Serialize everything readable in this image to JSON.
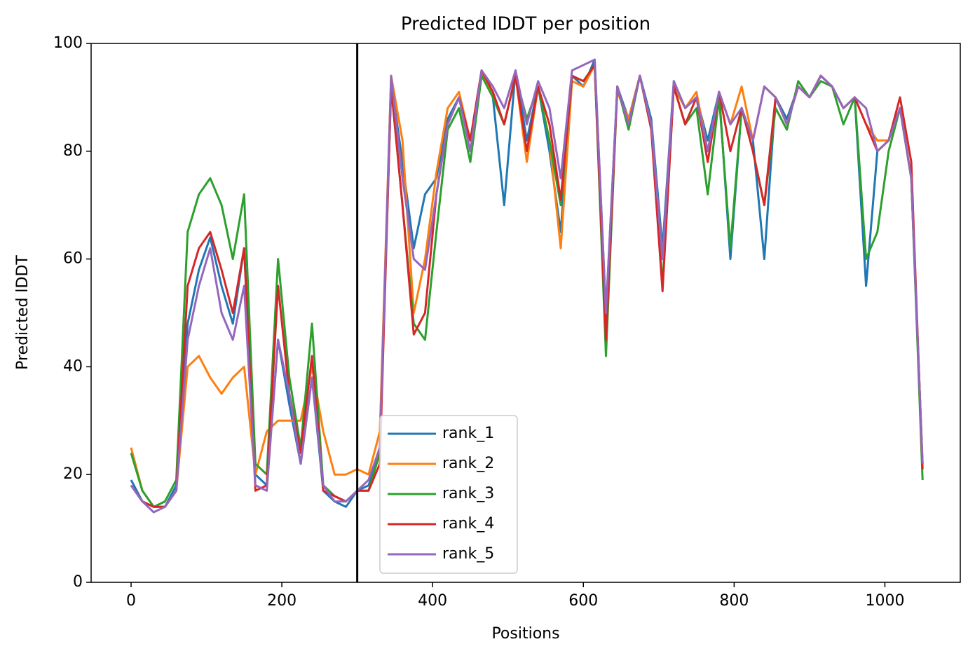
{
  "chart_data": {
    "type": "line",
    "title": "Predicted lDDT per position",
    "xlabel": "Positions",
    "ylabel": "Predicted lDDT",
    "x": [
      0,
      15,
      30,
      45,
      60,
      75,
      90,
      105,
      120,
      135,
      150,
      165,
      180,
      195,
      210,
      225,
      240,
      255,
      270,
      285,
      300,
      315,
      330,
      345,
      360,
      375,
      390,
      405,
      420,
      435,
      450,
      465,
      480,
      495,
      510,
      525,
      540,
      555,
      570,
      585,
      600,
      615,
      630,
      645,
      660,
      675,
      690,
      705,
      720,
      735,
      750,
      765,
      780,
      795,
      810,
      825,
      840,
      855,
      870,
      885,
      900,
      915,
      930,
      945,
      960,
      975,
      990,
      1005,
      1020,
      1035,
      1050
    ],
    "series": [
      {
        "name": "rank_1",
        "color": "#1f77b4",
        "values": [
          19,
          15,
          14,
          14,
          18,
          48,
          58,
          64,
          55,
          48,
          62,
          20,
          18,
          45,
          33,
          22,
          38,
          17,
          15,
          14,
          17,
          18,
          24,
          93,
          78,
          62,
          72,
          75,
          86,
          90,
          82,
          95,
          90,
          70,
          95,
          82,
          92,
          80,
          65,
          94,
          92,
          97,
          50,
          92,
          86,
          94,
          86,
          62,
          93,
          88,
          90,
          82,
          91,
          60,
          88,
          82,
          60,
          90,
          86,
          92,
          90,
          94,
          92,
          88,
          90,
          55,
          80,
          82,
          88,
          75,
          22
        ]
      },
      {
        "name": "rank_2",
        "color": "#ff7f0e",
        "values": [
          25,
          17,
          14,
          14,
          17,
          40,
          42,
          38,
          35,
          38,
          40,
          20,
          28,
          30,
          30,
          30,
          40,
          28,
          20,
          20,
          21,
          20,
          28,
          94,
          82,
          50,
          60,
          76,
          88,
          91,
          82,
          95,
          90,
          85,
          94,
          78,
          92,
          82,
          62,
          93,
          92,
          96,
          48,
          91,
          86,
          94,
          85,
          60,
          92,
          88,
          91,
          80,
          91,
          85,
          92,
          82,
          92,
          90,
          85,
          92,
          90,
          94,
          92,
          88,
          90,
          85,
          82,
          82,
          88,
          75,
          22
        ]
      },
      {
        "name": "rank_3",
        "color": "#2ca02c",
        "values": [
          24,
          17,
          14,
          15,
          19,
          65,
          72,
          75,
          70,
          60,
          72,
          22,
          20,
          60,
          38,
          25,
          48,
          18,
          16,
          15,
          17,
          17,
          24,
          92,
          70,
          48,
          45,
          65,
          84,
          88,
          78,
          94,
          90,
          85,
          94,
          86,
          92,
          82,
          70,
          94,
          93,
          96,
          42,
          92,
          84,
          94,
          85,
          55,
          92,
          85,
          88,
          72,
          90,
          62,
          88,
          80,
          70,
          88,
          84,
          93,
          90,
          93,
          92,
          85,
          90,
          60,
          65,
          80,
          88,
          75,
          19
        ]
      },
      {
        "name": "rank_4",
        "color": "#d62728",
        "values": [
          18,
          15,
          14,
          14,
          17,
          55,
          62,
          65,
          58,
          50,
          62,
          17,
          18,
          55,
          35,
          24,
          42,
          17,
          16,
          15,
          17,
          17,
          22,
          92,
          70,
          46,
          50,
          72,
          85,
          90,
          82,
          95,
          91,
          85,
          94,
          80,
          92,
          85,
          71,
          94,
          93,
          96,
          45,
          92,
          85,
          94,
          84,
          54,
          92,
          85,
          90,
          78,
          91,
          80,
          88,
          80,
          70,
          90,
          85,
          92,
          90,
          94,
          92,
          88,
          90,
          85,
          80,
          82,
          90,
          78,
          21
        ]
      },
      {
        "name": "rank_5",
        "color": "#9467bd",
        "values": [
          18,
          15,
          13,
          14,
          17,
          45,
          55,
          62,
          50,
          45,
          55,
          18,
          17,
          45,
          35,
          22,
          38,
          18,
          15,
          15,
          17,
          19,
          25,
          94,
          75,
          60,
          58,
          72,
          85,
          90,
          80,
          95,
          92,
          88,
          95,
          85,
          93,
          88,
          75,
          95,
          96,
          97,
          50,
          92,
          85,
          94,
          85,
          60,
          93,
          88,
          90,
          80,
          91,
          85,
          88,
          82,
          92,
          90,
          85,
          92,
          90,
          94,
          92,
          88,
          90,
          88,
          80,
          82,
          88,
          75,
          22
        ]
      }
    ],
    "vline_x": 300,
    "xlim": [
      -53,
      1100
    ],
    "ylim": [
      0,
      100
    ],
    "xticks": [
      0,
      200,
      400,
      600,
      800,
      1000
    ],
    "yticks": [
      0,
      20,
      40,
      60,
      80,
      100
    ],
    "grid": false,
    "legend": "lower center"
  }
}
